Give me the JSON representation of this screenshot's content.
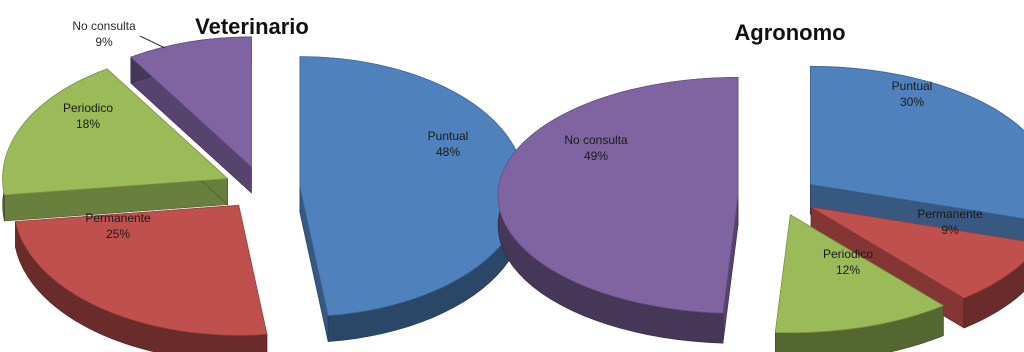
{
  "chart_data": [
    {
      "type": "pie",
      "style": "3d-exploded",
      "title": "Veterinario",
      "slices": [
        {
          "label": "Puntual",
          "value": 48,
          "display": "48%",
          "color": "#4f81bd"
        },
        {
          "label": "Permanente",
          "value": 25,
          "display": "25%",
          "color": "#c0504d"
        },
        {
          "label": "Periodico",
          "value": 18,
          "display": "18%",
          "color": "#9bbb59"
        },
        {
          "label": "No consulta",
          "value": 9,
          "display": "9%",
          "color": "#8064a2"
        }
      ]
    },
    {
      "type": "pie",
      "style": "3d-exploded",
      "title": "Agronomo",
      "slices": [
        {
          "label": "Puntual",
          "value": 30,
          "display": "30%",
          "color": "#4f81bd"
        },
        {
          "label": "Permanente",
          "value": 9,
          "display": "9%",
          "color": "#c0504d"
        },
        {
          "label": "Periodico",
          "value": 12,
          "display": "12%",
          "color": "#9bbb59"
        },
        {
          "label": "No consulta",
          "value": 49,
          "display": "49%",
          "color": "#8064a2"
        }
      ]
    }
  ]
}
